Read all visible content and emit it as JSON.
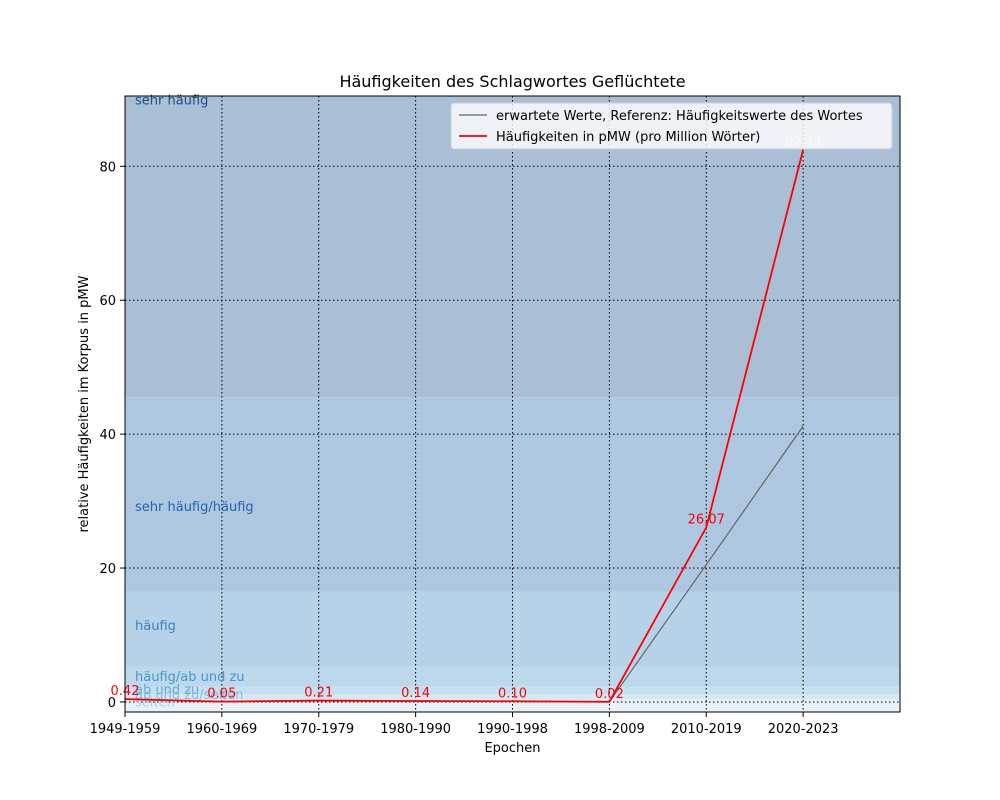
{
  "chart_data": {
    "type": "line",
    "title": "Häufigkeiten des Schlagwortes Geflüchtete",
    "xlabel": "Epochen",
    "ylabel": "relative Häufigkeiten im Korpus in pMW",
    "categories": [
      "1949-1959",
      "1960-1969",
      "1970-1979",
      "1980-1990",
      "1990-1998",
      "1998-2009",
      "2010-2019",
      "2020-2023"
    ],
    "xlim": [
      0,
      8
    ],
    "ylim": [
      -1.5,
      90.5
    ],
    "yticks": [
      0,
      20,
      40,
      60,
      80
    ],
    "grid": true,
    "legend_position": "top-right",
    "series": [
      {
        "name": "erwartete Werte, Referenz: Häufigkeitswerte des Wortes",
        "color": "#666666",
        "values": [
          0.42,
          0.05,
          0.21,
          0.14,
          0.1,
          0.02,
          20.5,
          41.2
        ]
      },
      {
        "name": "Häufigkeiten in pMW (pro Million Wörter)",
        "color": "#ff0000",
        "values": [
          0.42,
          0.05,
          0.21,
          0.14,
          0.1,
          0.02,
          26.07,
          82.47
        ],
        "labels": [
          "0.42",
          "0.05",
          "0.21",
          "0.14",
          "0.10",
          "0.02",
          "26.07",
          "82.47"
        ]
      }
    ],
    "bands": [
      {
        "from": 45.5,
        "to": 90.5,
        "color": "#a8bfd6",
        "label": "sehr häufig",
        "label_color": "#1a4f8c",
        "label_y": 90
      },
      {
        "from": 16.5,
        "to": 45.5,
        "color": "#adc7e0",
        "label": "sehr häufig/häufig",
        "label_color": "#2166ac",
        "label_y": 29.3
      },
      {
        "from": 5.3,
        "to": 16.5,
        "color": "#b5d2e8",
        "label": "häufig",
        "label_color": "#3a82c0",
        "label_y": 11.5
      },
      {
        "from": 2.3,
        "to": 5.3,
        "color": "#bcd8ec",
        "label": "häufig/ab und zu",
        "label_color": "#4a96cc",
        "label_y": 3.9
      },
      {
        "from": 1.1,
        "to": 2.3,
        "color": "#c6e0f2",
        "label": "ab und zu",
        "label_color": "#5ea9d8",
        "label_y": 1.9
      },
      {
        "from": 0.35,
        "to": 1.1,
        "color": "#d4e8f6",
        "label": "ab und zu/selten",
        "label_color": "#7fbde4",
        "label_y": 1.2
      },
      {
        "from": -1.5,
        "to": 0.35,
        "color": "#e6f1fa",
        "label": "selten",
        "label_color": "#a3cfec",
        "label_y": 0.1
      }
    ]
  }
}
